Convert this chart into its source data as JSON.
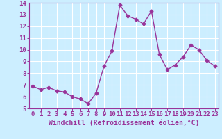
{
  "x": [
    0,
    1,
    2,
    3,
    4,
    5,
    6,
    7,
    8,
    9,
    10,
    11,
    12,
    13,
    14,
    15,
    16,
    17,
    18,
    19,
    20,
    21,
    22,
    23
  ],
  "y": [
    6.9,
    6.6,
    6.8,
    6.5,
    6.4,
    6.0,
    5.8,
    5.4,
    6.3,
    8.6,
    9.9,
    13.8,
    12.9,
    12.6,
    12.2,
    13.3,
    9.6,
    8.3,
    8.7,
    9.4,
    10.4,
    10.0,
    9.1,
    8.6
  ],
  "line_color": "#993399",
  "marker": "D",
  "marker_size": 2.5,
  "linewidth": 1.0,
  "bg_color": "#cceeff",
  "grid_color": "#ffffff",
  "xlabel": "Windchill (Refroidissement éolien,°C)",
  "xlabel_fontsize": 7,
  "tick_fontsize": 6.5,
  "ylim": [
    5,
    14
  ],
  "xlim": [
    -0.5,
    23.5
  ],
  "yticks": [
    5,
    6,
    7,
    8,
    9,
    10,
    11,
    12,
    13,
    14
  ],
  "xticks": [
    0,
    1,
    2,
    3,
    4,
    5,
    6,
    7,
    8,
    9,
    10,
    11,
    12,
    13,
    14,
    15,
    16,
    17,
    18,
    19,
    20,
    21,
    22,
    23
  ]
}
